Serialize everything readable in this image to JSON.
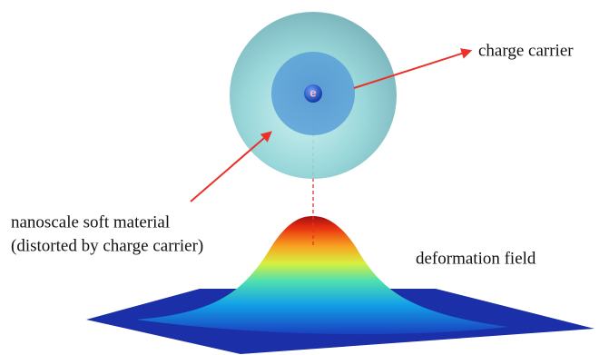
{
  "electron": "e",
  "labels": {
    "charge_carrier": "charge carrier",
    "material_line1": "nanoscale soft material",
    "material_line2": "(distorted by charge carrier)",
    "deformation": "deformation field"
  }
}
